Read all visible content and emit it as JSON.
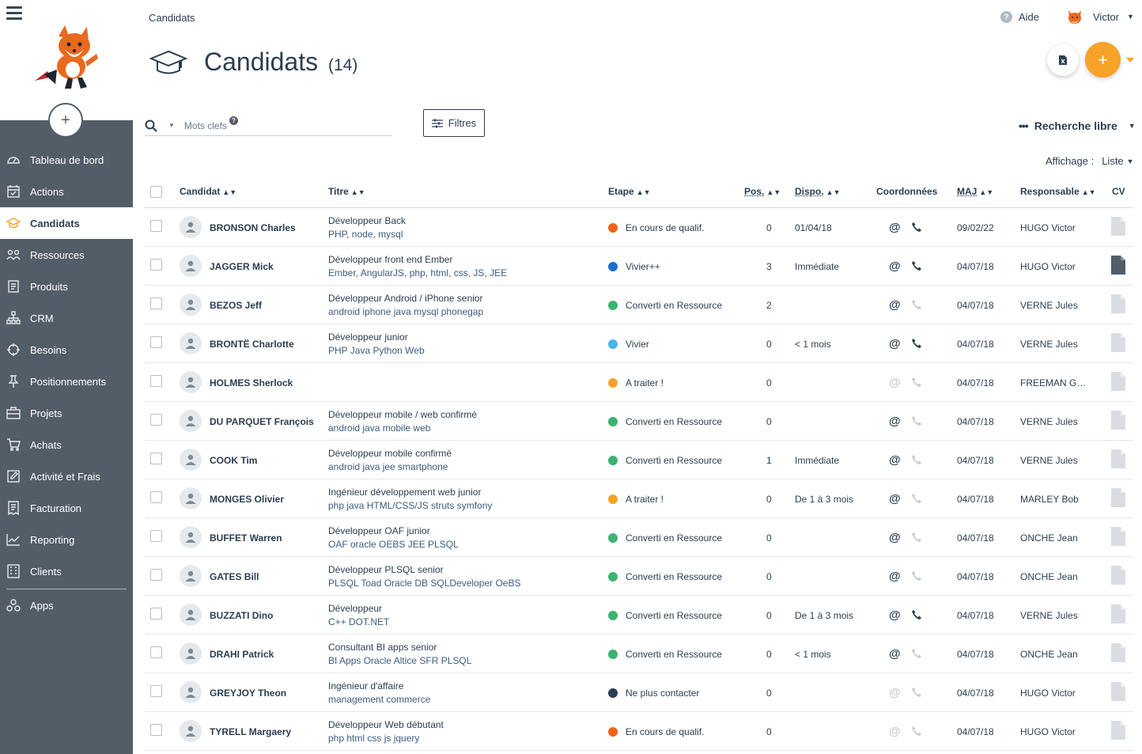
{
  "sidebar": {
    "items": [
      {
        "label": "Tableau de bord",
        "icon": "dashboard-icon"
      },
      {
        "label": "Actions",
        "icon": "calendar-check-icon"
      },
      {
        "label": "Candidats",
        "icon": "graduation-cap-icon",
        "active": true
      },
      {
        "label": "Ressources",
        "icon": "people-icon"
      },
      {
        "label": "Produits",
        "icon": "document-icon"
      },
      {
        "label": "CRM",
        "icon": "org-chart-icon"
      },
      {
        "label": "Besoins",
        "icon": "target-icon"
      },
      {
        "label": "Positionnements",
        "icon": "pin-icon"
      },
      {
        "label": "Projets",
        "icon": "briefcase-icon"
      },
      {
        "label": "Achats",
        "icon": "cart-icon"
      },
      {
        "label": "Activité et Frais",
        "icon": "edit-icon"
      },
      {
        "label": "Facturation",
        "icon": "invoice-icon"
      },
      {
        "label": "Reporting",
        "icon": "chart-line-icon"
      },
      {
        "label": "Clients",
        "icon": "building-icon"
      },
      {
        "label": "Apps",
        "icon": "apps-icon"
      }
    ]
  },
  "header": {
    "breadcrumb": "Candidats",
    "help_label": "Aide",
    "user_name": "Victor",
    "title": "Candidats",
    "count": "(14)"
  },
  "toolbar": {
    "search_placeholder": "Mots clefs",
    "filters_label": "Filtres",
    "free_search_label": "Recherche libre",
    "display_label": "Affichage :",
    "display_value": "Liste"
  },
  "table": {
    "columns": [
      "Candidat",
      "Titre",
      "Etape",
      "Pos.",
      "Dispo.",
      "Coordonnées",
      "MAJ",
      "Responsable",
      "CV"
    ],
    "rows": [
      {
        "name": "BRONSON Charles",
        "title": "Développeur Back",
        "skills": "PHP, node, mysql",
        "stage": "En cours de qualif.",
        "stage_color": "#f06418",
        "pos": "0",
        "dispo": "01/04/18",
        "email": true,
        "phone": true,
        "maj": "09/02/22",
        "resp": "HUGO Victor",
        "cv": false
      },
      {
        "name": "JAGGER Mick",
        "title": "Développeur front end Ember",
        "skills": "Ember, AngularJS, php, html, css, JS, JEE",
        "stage": "Vivier++",
        "stage_color": "#1c6fd1",
        "pos": "3",
        "dispo": "Immédiate",
        "email": true,
        "phone": true,
        "maj": "04/07/18",
        "resp": "HUGO Victor",
        "cv": true
      },
      {
        "name": "BEZOS Jeff",
        "title": "Développeur Android / iPhone senior",
        "skills": "android iphone java mysql phonegap",
        "stage": "Converti en Ressource",
        "stage_color": "#3cb371",
        "pos": "2",
        "dispo": "",
        "email": true,
        "phone": false,
        "maj": "04/07/18",
        "resp": "VERNE Jules",
        "cv": false
      },
      {
        "name": "BRONTË Charlotte",
        "title": "Développeur junior",
        "skills": "PHP Java Python Web",
        "stage": "Vivier",
        "stage_color": "#45b4e8",
        "pos": "0",
        "dispo": "< 1 mois",
        "email": true,
        "phone": true,
        "maj": "04/07/18",
        "resp": "VERNE Jules",
        "cv": false
      },
      {
        "name": "HOLMES Sherlock",
        "title": "",
        "skills": "",
        "stage": "A traiter !",
        "stage_color": "#f7a229",
        "pos": "0",
        "dispo": "",
        "email": false,
        "phone": false,
        "maj": "04/07/18",
        "resp": "FREEMAN Gordon",
        "cv": false
      },
      {
        "name": "DU PARQUET François",
        "title": "Développeur mobile / web confirmé",
        "skills": "android java mobile web",
        "stage": "Converti en Ressource",
        "stage_color": "#3cb371",
        "pos": "0",
        "dispo": "",
        "email": true,
        "phone": false,
        "maj": "04/07/18",
        "resp": "VERNE Jules",
        "cv": false
      },
      {
        "name": "COOK Tim",
        "title": "Développeur mobile confirmé",
        "skills": "android java jee smartphone",
        "stage": "Converti en Ressource",
        "stage_color": "#3cb371",
        "pos": "1",
        "dispo": "Immédiate",
        "email": true,
        "phone": false,
        "maj": "04/07/18",
        "resp": "VERNE Jules",
        "cv": false
      },
      {
        "name": "MONGES Olivier",
        "title": "Ingénieur développement web junior",
        "skills": "php java HTML/CSS/JS struts symfony",
        "stage": "A traiter !",
        "stage_color": "#f7a229",
        "pos": "0",
        "dispo": "De 1 à 3 mois",
        "email": true,
        "phone": false,
        "maj": "04/07/18",
        "resp": "MARLEY Bob",
        "cv": false
      },
      {
        "name": "BUFFET Warren",
        "title": "Développeur OAF junior",
        "skills": "OAF oracle OEBS JEE PLSQL",
        "stage": "Converti en Ressource",
        "stage_color": "#3cb371",
        "pos": "0",
        "dispo": "",
        "email": true,
        "phone": false,
        "maj": "04/07/18",
        "resp": "ONCHE Jean",
        "cv": false
      },
      {
        "name": "GATES Bill",
        "title": "Développeur PLSQL senior",
        "skills": "PLSQL Toad Oracle DB SQLDeveloper OeBS",
        "stage": "Converti en Ressource",
        "stage_color": "#3cb371",
        "pos": "0",
        "dispo": "",
        "email": true,
        "phone": false,
        "maj": "04/07/18",
        "resp": "ONCHE Jean",
        "cv": false
      },
      {
        "name": "BUZZATI Dino",
        "title": "Développeur",
        "skills": "C++ DOT.NET",
        "stage": "Converti en Ressource",
        "stage_color": "#3cb371",
        "pos": "0",
        "dispo": "De 1 à 3 mois",
        "email": true,
        "phone": true,
        "maj": "04/07/18",
        "resp": "VERNE Jules",
        "cv": false
      },
      {
        "name": "DRAHI Patrick",
        "title": "Consultant BI apps senior",
        "skills": "BI Apps Oracle Altice SFR PLSQL",
        "stage": "Converti en Ressource",
        "stage_color": "#3cb371",
        "pos": "0",
        "dispo": "< 1 mois",
        "email": true,
        "phone": false,
        "maj": "04/07/18",
        "resp": "ONCHE Jean",
        "cv": false
      },
      {
        "name": "GREYJOY Theon",
        "title": "Ingénieur d'affaire",
        "skills": "management commerce",
        "stage": "Ne plus contacter",
        "stage_color": "#2c3e50",
        "pos": "0",
        "dispo": "",
        "email": false,
        "phone": false,
        "maj": "04/07/18",
        "resp": "HUGO Victor",
        "cv": false
      },
      {
        "name": "TYRELL Margaery",
        "title": "Développeur Web débutant",
        "skills": "php html css js jquery",
        "stage": "En cours de qualif.",
        "stage_color": "#f06418",
        "pos": "0",
        "dispo": "",
        "email": false,
        "phone": false,
        "maj": "04/07/18",
        "resp": "HUGO Victor",
        "cv": false
      }
    ]
  }
}
